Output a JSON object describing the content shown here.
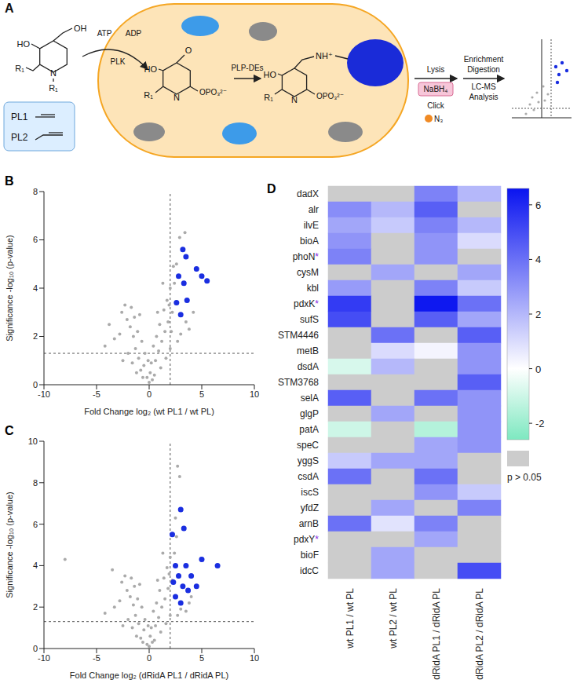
{
  "panel_a": {
    "label": "A",
    "substrate_labels": [
      "HO",
      "OH",
      "R₁",
      "N",
      "R₁"
    ],
    "probes": [
      "PL1",
      "PL2"
    ],
    "cofactors": [
      "ATP",
      "ADP"
    ],
    "kinase": "PLK",
    "product_labels": [
      "HO",
      "O",
      "R₁",
      "N",
      "OPO₃²⁻"
    ],
    "enzymes": "PLP-DEs",
    "bound_labels": [
      "HO",
      "NH⁺",
      "R₁",
      "N",
      "OPO₃²⁻"
    ],
    "steps": [
      "Lysis",
      "NaBH₄",
      "Click",
      "N₃",
      "Enrichment",
      "Digestion",
      "LC-MS",
      "Analysis"
    ]
  },
  "chart_data": [
    {
      "type": "scatter",
      "label": "B",
      "x_label": "Fold Change log₂ (wt PL1 / wt PL)",
      "y_label": "Significance -log₁₀ (p-value)",
      "xlim": [
        -10,
        10
      ],
      "xticks": [
        -10,
        -5,
        0,
        5,
        10
      ],
      "ylim": [
        0,
        8
      ],
      "yticks": [
        0,
        2,
        4,
        6,
        8
      ],
      "thresholds": {
        "x": 2,
        "y": 1.3
      },
      "series": [
        {
          "color": "#aaaaaa",
          "values": [
            [
              -0.2,
              0.3
            ],
            [
              0.1,
              0.5
            ],
            [
              0.3,
              0.2
            ],
            [
              -0.5,
              0.8
            ],
            [
              0.6,
              1.0
            ],
            [
              -0.8,
              0.6
            ],
            [
              0.9,
              1.4
            ],
            [
              -1.0,
              1.1
            ],
            [
              1.2,
              1.8
            ],
            [
              -1.3,
              1.5
            ],
            [
              1.5,
              2.2
            ],
            [
              -1.5,
              2.0
            ],
            [
              1.8,
              2.6
            ],
            [
              -1.8,
              2.4
            ],
            [
              2.2,
              3.0
            ],
            [
              -2.1,
              2.7
            ],
            [
              0.4,
              1.6
            ],
            [
              -0.4,
              1.3
            ],
            [
              0.7,
              2.0
            ],
            [
              -0.7,
              1.8
            ],
            [
              1.0,
              2.5
            ],
            [
              -1.1,
              2.2
            ],
            [
              1.4,
              3.1
            ],
            [
              -1.4,
              2.8
            ],
            [
              1.7,
              3.5
            ],
            [
              -1.7,
              3.2
            ],
            [
              2.0,
              4.0
            ],
            [
              -2.3,
              3.3
            ],
            [
              2.4,
              4.2
            ],
            [
              -2.6,
              3.0
            ],
            [
              2.6,
              5.0
            ],
            [
              2.9,
              6.1
            ],
            [
              3.4,
              6.3
            ],
            [
              2.3,
              4.9
            ],
            [
              1.3,
              4.2
            ],
            [
              0.8,
              3.0
            ],
            [
              -0.9,
              2.9
            ],
            [
              -2.8,
              2.1
            ],
            [
              -3.3,
              1.9
            ],
            [
              -3.8,
              2.5
            ],
            [
              -4.2,
              1.6
            ],
            [
              3.0,
              2.1
            ],
            [
              3.8,
              2.3
            ],
            [
              4.2,
              3.0
            ],
            [
              2.7,
              1.8
            ],
            [
              1.6,
              1.1
            ],
            [
              -1.6,
              0.9
            ],
            [
              0.2,
              0.9
            ],
            [
              -0.1,
              1.0
            ],
            [
              0.5,
              0.4
            ],
            [
              -0.6,
              0.3
            ],
            [
              1.1,
              0.7
            ],
            [
              -1.2,
              0.5
            ],
            [
              2.0,
              1.5
            ],
            [
              -2.0,
              1.3
            ],
            [
              3.5,
              2.6
            ],
            [
              -2.5,
              1.0
            ],
            [
              0.0,
              0.1
            ],
            [
              1.9,
              3.3
            ],
            [
              2.1,
              2.2
            ]
          ]
        },
        {
          "color": "#1a2ee0",
          "values": [
            [
              2.8,
              4.5
            ],
            [
              3.2,
              5.6
            ],
            [
              3.5,
              5.3
            ],
            [
              3.3,
              4.2
            ],
            [
              4.5,
              4.8
            ],
            [
              5.0,
              4.5
            ],
            [
              5.5,
              4.3
            ],
            [
              2.6,
              3.4
            ],
            [
              3.6,
              3.5
            ],
            [
              3.0,
              2.9
            ]
          ]
        }
      ]
    },
    {
      "type": "scatter",
      "label": "C",
      "x_label": "Fold Change log₂ (dRidA PL1 / dRidA PL)",
      "y_label": "Significance -log₁₀ (p-value)",
      "xlim": [
        -10,
        10
      ],
      "xticks": [
        -10,
        -5,
        0,
        5,
        10
      ],
      "ylim": [
        0,
        10
      ],
      "yticks": [
        0,
        2,
        4,
        6,
        8,
        10
      ],
      "thresholds": {
        "x": 2,
        "y": 1.3
      },
      "series": [
        {
          "color": "#aaaaaa",
          "values": [
            [
              -0.2,
              0.2
            ],
            [
              0.1,
              0.6
            ],
            [
              0.3,
              0.3
            ],
            [
              -0.5,
              0.9
            ],
            [
              0.6,
              1.1
            ],
            [
              -0.8,
              0.5
            ],
            [
              0.9,
              1.5
            ],
            [
              -1.0,
              1.2
            ],
            [
              1.2,
              2.0
            ],
            [
              -1.3,
              1.6
            ],
            [
              1.5,
              2.4
            ],
            [
              -1.5,
              2.1
            ],
            [
              1.8,
              2.9
            ],
            [
              -1.8,
              2.5
            ],
            [
              2.2,
              3.3
            ],
            [
              -2.1,
              2.8
            ],
            [
              0.4,
              1.8
            ],
            [
              -0.4,
              1.4
            ],
            [
              0.7,
              2.2
            ],
            [
              -0.7,
              2.0
            ],
            [
              1.0,
              2.8
            ],
            [
              -1.1,
              2.4
            ],
            [
              1.4,
              3.4
            ],
            [
              -1.4,
              3.0
            ],
            [
              1.7,
              3.9
            ],
            [
              -1.7,
              3.4
            ],
            [
              2.0,
              4.4
            ],
            [
              -2.3,
              3.5
            ],
            [
              2.4,
              4.6
            ],
            [
              -2.6,
              3.2
            ],
            [
              2.6,
              5.4
            ],
            [
              2.5,
              6.3
            ],
            [
              2.7,
              8.8
            ],
            [
              2.9,
              8.3
            ],
            [
              1.3,
              4.6
            ],
            [
              0.8,
              3.3
            ],
            [
              -0.9,
              3.1
            ],
            [
              -2.8,
              2.3
            ],
            [
              -3.3,
              2.0
            ],
            [
              -3.5,
              3.8
            ],
            [
              -4.2,
              1.7
            ],
            [
              -8.0,
              4.3
            ],
            [
              3.0,
              1.9
            ],
            [
              3.8,
              2.2
            ],
            [
              4.0,
              2.5
            ],
            [
              2.7,
              1.6
            ],
            [
              1.6,
              1.2
            ],
            [
              -1.6,
              1.0
            ],
            [
              0.2,
              1.0
            ],
            [
              -0.1,
              1.1
            ],
            [
              0.5,
              0.4
            ],
            [
              -0.6,
              0.3
            ],
            [
              1.1,
              0.8
            ],
            [
              -1.2,
              0.6
            ],
            [
              2.0,
              1.6
            ],
            [
              -2.0,
              1.4
            ],
            [
              3.5,
              1.8
            ],
            [
              -2.5,
              1.1
            ],
            [
              0.0,
              0.1
            ],
            [
              1.9,
              3.6
            ]
          ]
        },
        {
          "color": "#1a2ee0",
          "values": [
            [
              2.2,
              5.5
            ],
            [
              3.0,
              6.7
            ],
            [
              3.3,
              5.8
            ],
            [
              2.5,
              4.0
            ],
            [
              2.8,
              3.5
            ],
            [
              3.2,
              3.0
            ],
            [
              3.5,
              4.0
            ],
            [
              4.0,
              3.5
            ],
            [
              5.0,
              4.3
            ],
            [
              6.5,
              4.0
            ],
            [
              2.5,
              2.5
            ],
            [
              3.0,
              2.2
            ],
            [
              4.5,
              3.0
            ],
            [
              3.7,
              2.8
            ],
            [
              2.3,
              3.2
            ]
          ]
        }
      ]
    },
    {
      "type": "heatmap",
      "label": "D",
      "rows": [
        "dadX",
        "alr",
        "ilvE",
        "bioA",
        "phoN",
        "cysM",
        "kbl",
        "pdxK",
        "sufS",
        "STM4446",
        "metB",
        "dsdA",
        "STM3768",
        "selA",
        "glgP",
        "patA",
        "speC",
        "yggS",
        "csdA",
        "iscS",
        "yfdZ",
        "arnB",
        "pdxY",
        "bioF",
        "idcC"
      ],
      "row_marks": [
        null,
        null,
        null,
        null,
        "*",
        null,
        null,
        "*",
        null,
        null,
        null,
        null,
        null,
        null,
        null,
        null,
        null,
        null,
        null,
        null,
        null,
        null,
        "*",
        null,
        null
      ],
      "mark_color": "#8a2be2",
      "columns": [
        "wt PL1 / wt PL",
        "wt PL2 / wt PL",
        "dRidA PL1 / dRidA PL",
        "dRidA PL2 / dRidA PL"
      ],
      "cells": [
        [
          null,
          null,
          3.5,
          2
        ],
        [
          3.2,
          2,
          4.5,
          null
        ],
        [
          2.5,
          1.5,
          3.5,
          2
        ],
        [
          3,
          null,
          3,
          1
        ],
        [
          3.5,
          null,
          3,
          null
        ],
        [
          null,
          2.5,
          null,
          2.5
        ],
        [
          2.8,
          null,
          3.5,
          1.5
        ],
        [
          5.5,
          null,
          6.5,
          4
        ],
        [
          5,
          null,
          4.5,
          2.5
        ],
        [
          null,
          4,
          null,
          4.5
        ],
        [
          null,
          1,
          0.3,
          3
        ],
        [
          -0.8,
          2,
          null,
          3
        ],
        [
          null,
          null,
          null,
          4.5
        ],
        [
          4.5,
          null,
          4,
          3
        ],
        [
          null,
          2.5,
          null,
          3
        ],
        [
          -1,
          null,
          -1.5,
          3
        ],
        [
          null,
          null,
          2.5,
          3
        ],
        [
          1.5,
          2.5,
          2.5,
          null
        ],
        [
          4,
          null,
          4,
          null
        ],
        [
          null,
          null,
          3,
          1.5
        ],
        [
          null,
          2.5,
          null,
          3.5
        ],
        [
          4,
          0.8,
          3.5,
          null
        ],
        [
          null,
          null,
          2.5,
          null
        ],
        [
          null,
          2.5,
          null,
          null
        ],
        [
          null,
          2.5,
          null,
          5
        ]
      ],
      "colorbar": {
        "range": [
          -2.6,
          6.6
        ],
        "ticks": [
          -2,
          0,
          2,
          4,
          6
        ]
      },
      "missing_label": "p > 0.05",
      "missing_color": "#cccccc"
    }
  ]
}
